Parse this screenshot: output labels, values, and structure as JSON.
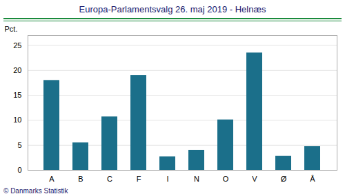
{
  "chart_data": {
    "type": "bar",
    "title": "Europa-Parlamentsvalg 26. maj 2019 - Helnæs",
    "categories": [
      "A",
      "B",
      "C",
      "F",
      "I",
      "N",
      "O",
      "V",
      "Ø",
      "Å"
    ],
    "values": [
      18.0,
      5.5,
      10.7,
      19.0,
      2.7,
      4.0,
      10.1,
      23.5,
      2.8,
      4.8
    ],
    "color": "#1b6f8a",
    "ylabel": "Pct.",
    "ylim": [
      0,
      27
    ],
    "yticks": [
      0,
      5,
      10,
      15,
      20,
      25
    ],
    "grid": true,
    "footer": "© Danmarks Statistik"
  }
}
